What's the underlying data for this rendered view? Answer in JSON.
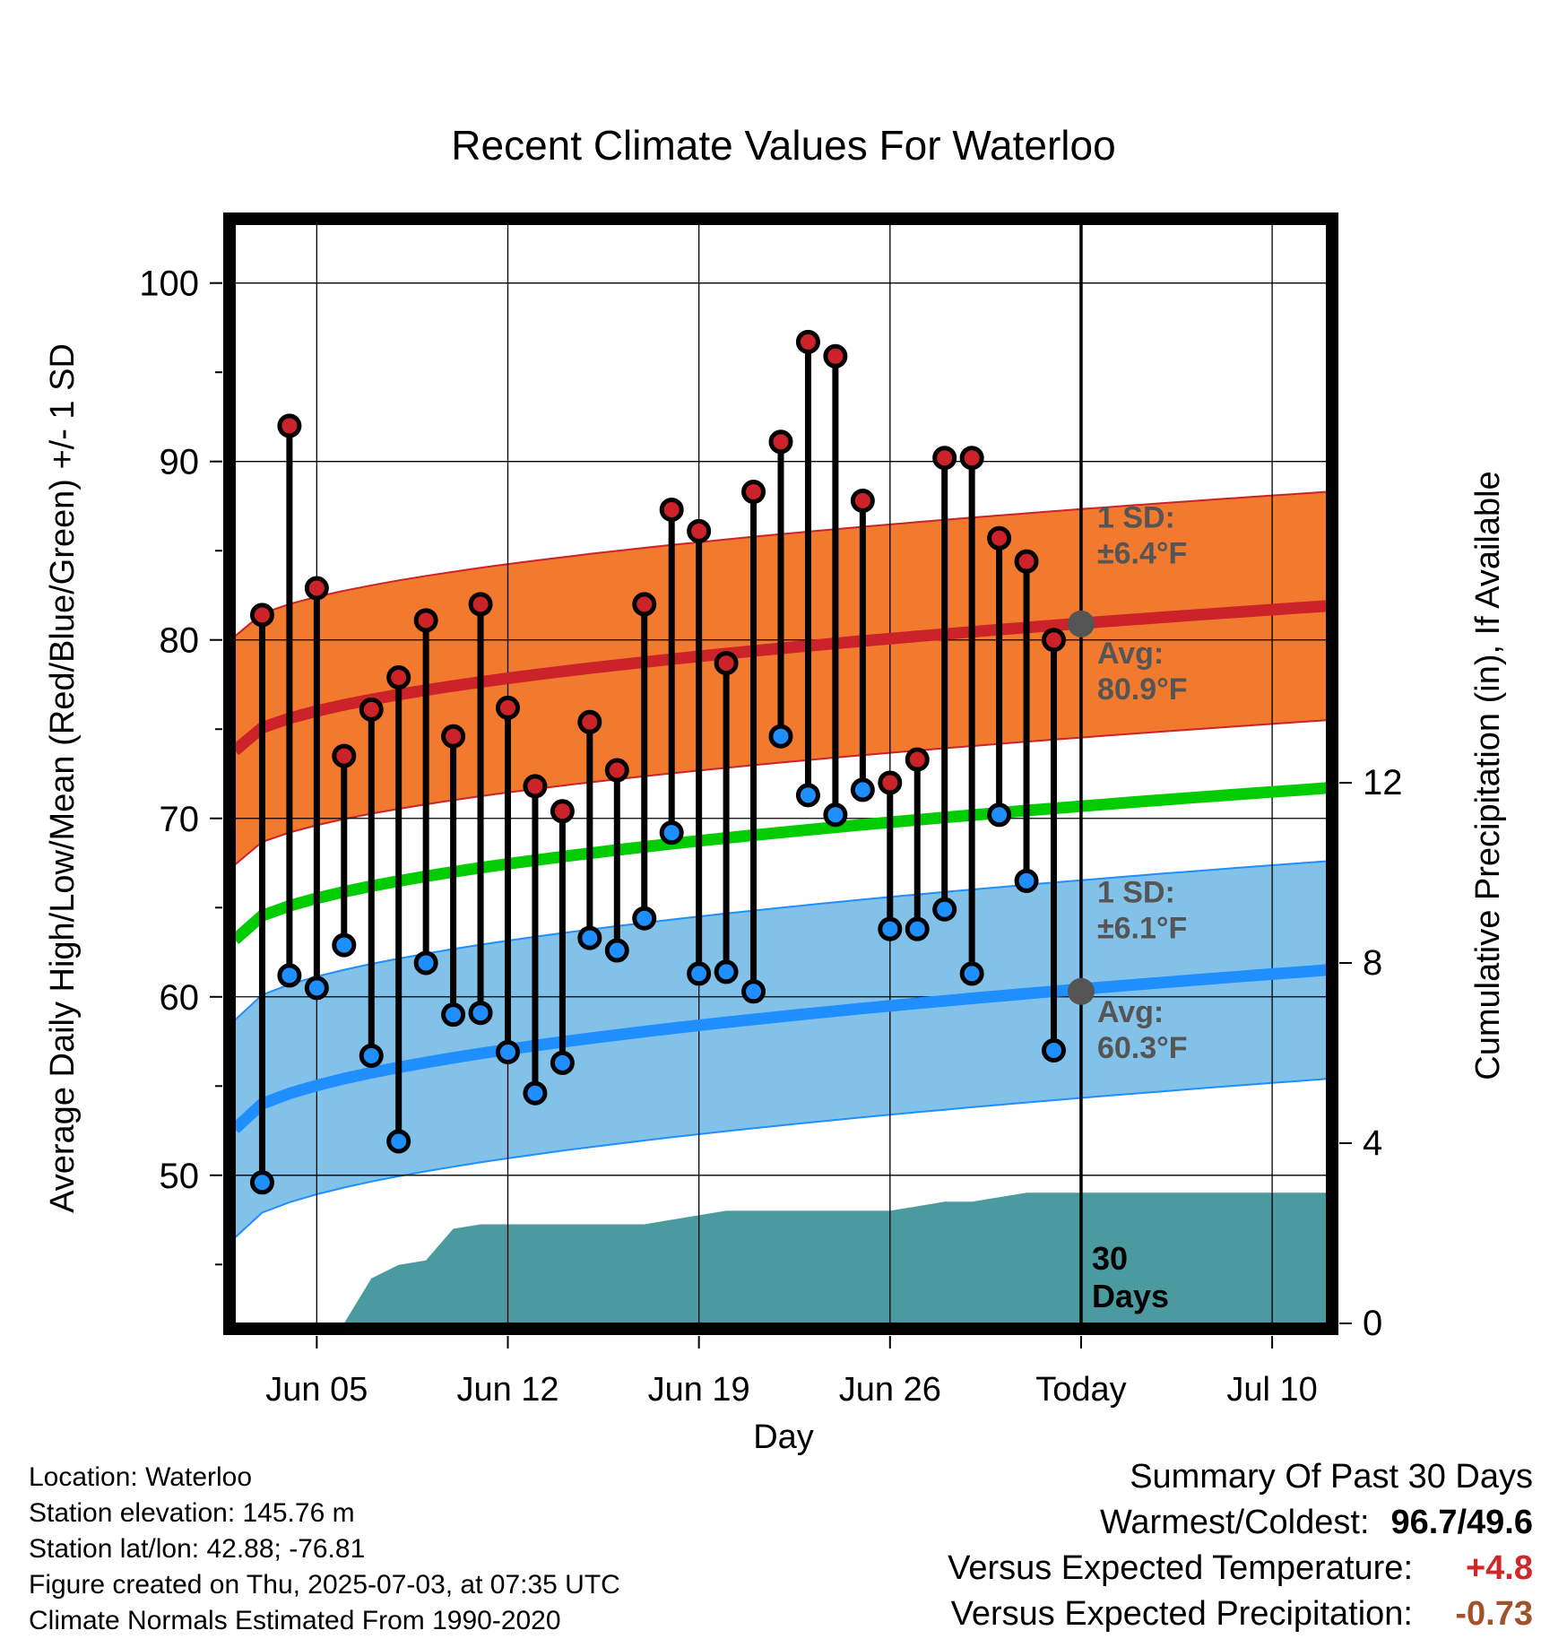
{
  "chart_data": {
    "type": "line",
    "title": "Recent Climate Values For Waterloo",
    "xlabel": "Day",
    "ylabel": "Average Daily High/Low/Mean (Red/Blue/Green) +/- 1 SD",
    "y2label": "Cumulative Precipitation (in), If Available",
    "x_ticks": [
      "Jun 05",
      "Jun 12",
      "Jun 19",
      "Jun 26",
      "Today",
      "Jul 10"
    ],
    "y_ticks": [
      "100",
      "90",
      "80",
      "70",
      "60",
      "50"
    ],
    "y2_ticks": [
      "0",
      "4",
      "8",
      "12"
    ],
    "ylim": [
      41.7,
      103.3
    ],
    "y2lim": [
      0,
      24.4
    ],
    "x_range_days": [
      "2025-06-02",
      "2025-07-12"
    ],
    "today": "2025-07-03",
    "grid": true,
    "days": [
      "2025-06-03",
      "2025-06-04",
      "2025-06-05",
      "2025-06-06",
      "2025-06-07",
      "2025-06-08",
      "2025-06-09",
      "2025-06-10",
      "2025-06-11",
      "2025-06-12",
      "2025-06-13",
      "2025-06-14",
      "2025-06-15",
      "2025-06-16",
      "2025-06-17",
      "2025-06-18",
      "2025-06-19",
      "2025-06-20",
      "2025-06-21",
      "2025-06-22",
      "2025-06-23",
      "2025-06-24",
      "2025-06-25",
      "2025-06-26",
      "2025-06-27",
      "2025-06-28",
      "2025-06-29",
      "2025-06-30",
      "2025-07-01",
      "2025-07-02"
    ],
    "daily_high": [
      81.4,
      92.0,
      82.9,
      73.5,
      76.1,
      77.9,
      81.1,
      74.6,
      82.0,
      76.2,
      71.8,
      70.4,
      75.4,
      72.7,
      82.0,
      87.3,
      86.1,
      78.7,
      88.3,
      91.1,
      96.7,
      95.9,
      87.8,
      72.0,
      73.3,
      90.2,
      90.2,
      85.7,
      84.4,
      80.0
    ],
    "daily_low": [
      49.6,
      61.2,
      60.5,
      62.9,
      56.7,
      51.9,
      61.9,
      59.0,
      59.1,
      56.9,
      54.6,
      56.3,
      63.3,
      62.6,
      64.4,
      69.2,
      61.3,
      61.4,
      60.3,
      74.6,
      71.3,
      70.2,
      71.6,
      63.8,
      63.8,
      64.9,
      61.3,
      70.2,
      66.5,
      57.0
    ],
    "normal_high": {
      "start": 73.8,
      "end": 81.9,
      "today_value": 80.9
    },
    "normal_low": {
      "start": 52.6,
      "end": 61.5,
      "today_value": 60.3
    },
    "normal_mean": {
      "start": 63.2,
      "end": 71.7
    },
    "sd_high": "±6.4°F",
    "sd_low": "±6.1°F",
    "cumulative_precip": [
      0,
      0,
      0,
      0,
      1.0,
      1.3,
      1.4,
      2.1,
      2.2,
      2.2,
      2.2,
      2.2,
      2.2,
      2.2,
      2.2,
      2.3,
      2.4,
      2.5,
      2.5,
      2.5,
      2.5,
      2.5,
      2.5,
      2.5,
      2.6,
      2.7,
      2.7,
      2.8,
      2.9,
      2.9
    ],
    "labels": {
      "sd_label": "1 SD:",
      "sd_high_value": "±6.4°F",
      "sd_low_value": "±6.1°F",
      "avg_label": "Avg:",
      "avg_high_value": "80.9°F",
      "avg_low_value": "60.3°F",
      "period_label_1": "30",
      "period_label_2": "Days"
    },
    "colors": {
      "high_band": "#f27a2e",
      "high_line": "#cc2229",
      "low_band": "#82c1e8",
      "low_line": "#1f8fff",
      "mean_line": "#00cc00",
      "precip": "#4a9aa0",
      "high_dot": "#cc2229",
      "low_dot": "#1f8fff",
      "avg_dot": "#555555",
      "annotation": "#555555"
    }
  },
  "footer": {
    "location": "Location: Waterloo",
    "elevation": "Station elevation: 145.76 m",
    "latlon": "Station lat/lon: 42.88; -76.81",
    "created": "Figure created on Thu, 2025-07-03, at 07:35 UTC",
    "normals": "Climate Normals Estimated From 1990-2020"
  },
  "summary": {
    "title": "Summary Of Past 30 Days",
    "warm_cold_label": "Warmest/Coldest:",
    "warm_cold_value": "96.7/49.6",
    "temp_label": "Versus Expected Temperature:",
    "temp_value": "+4.8",
    "precip_label": "Versus Expected Precipitation:",
    "precip_value": "-0.73"
  }
}
